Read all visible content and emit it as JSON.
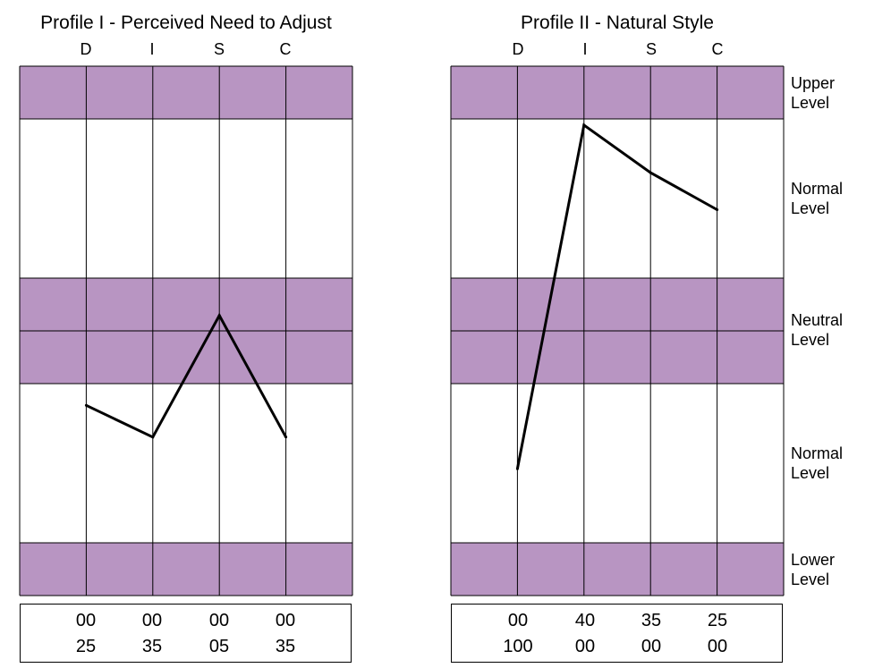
{
  "colors": {
    "band": "#b895c2",
    "line": "#000000",
    "grid": "#000000"
  },
  "level_labels": [
    {
      "l1": "Upper",
      "l2": "Level"
    },
    {
      "l1": "Normal",
      "l2": "Level"
    },
    {
      "l1": "Neutral",
      "l2": "Level"
    },
    {
      "l1": "Normal",
      "l2": "Level"
    },
    {
      "l1": "Lower",
      "l2": "Level"
    }
  ],
  "chart_data": [
    {
      "type": "line",
      "title": "Profile I - Perceived Need to Adjust",
      "categories": [
        "D",
        "I",
        "S",
        "C"
      ],
      "series": [
        {
          "values": [
            -14,
            -20,
            3,
            -20
          ]
        }
      ],
      "ylim": [
        -40,
        40
      ],
      "grid": true,
      "scores": {
        "row1": [
          "00",
          "00",
          "00",
          "00"
        ],
        "row2": [
          "25",
          "35",
          "05",
          "35"
        ]
      }
    },
    {
      "type": "line",
      "title": "Profile II - Natural Style",
      "categories": [
        "D",
        "I",
        "S",
        "C"
      ],
      "series": [
        {
          "values": [
            -26,
            39,
            30,
            23
          ]
        }
      ],
      "ylim": [
        -40,
        40
      ],
      "grid": true,
      "scores": {
        "row1": [
          "00",
          "40",
          "35",
          "25"
        ],
        "row2": [
          "100",
          "00",
          "00",
          "00"
        ]
      }
    }
  ]
}
